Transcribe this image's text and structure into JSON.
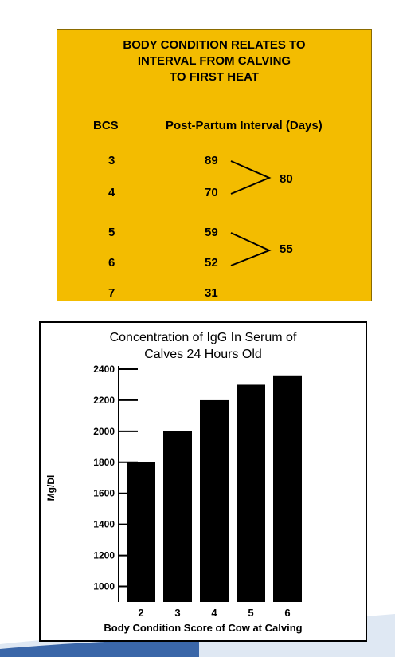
{
  "panel": {
    "title_lines": [
      "BODY CONDITION RELATES TO",
      "INTERVAL FROM CALVING",
      "TO FIRST HEAT"
    ],
    "col_bcs": "BCS",
    "col_interval": "Post-Partum Interval (Days)",
    "rows": [
      {
        "bcs": "3",
        "days": "89"
      },
      {
        "bcs": "4",
        "days": "70"
      },
      {
        "bcs": "5",
        "days": "59"
      },
      {
        "bcs": "6",
        "days": "52"
      },
      {
        "bcs": "7",
        "days": "31"
      }
    ],
    "group_averages": [
      "80",
      "55"
    ],
    "background": "#f3bc00"
  },
  "chart_data": {
    "type": "bar",
    "title_lines": [
      "Concentration of IgG In Serum of",
      "Calves 24 Hours Old"
    ],
    "xlabel": "Body Condition Score of Cow at Calving",
    "ylabel": "Mg/Dl",
    "categories": [
      "2",
      "3",
      "4",
      "5",
      "6"
    ],
    "values": [
      1800,
      2000,
      2200,
      2300,
      2360
    ],
    "yticks": [
      1000,
      1200,
      1400,
      1600,
      1800,
      2000,
      2200,
      2400
    ],
    "ylim": [
      900,
      2400
    ],
    "bar_color": "#000000",
    "grid": false
  }
}
